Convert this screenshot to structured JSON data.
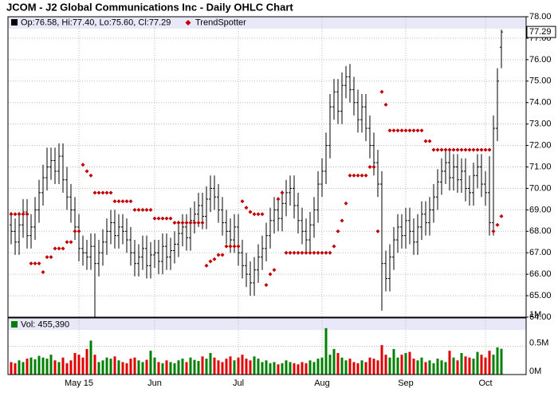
{
  "chart_data": {
    "type": "ohlc",
    "title": "JCOM - J2 Global Communications Inc - Daily OHLC Chart",
    "legend_text": "Op:76.58, Hi:77.40, Lo:75.60, Cl:77.29",
    "color": "#000000",
    "grid": true,
    "categories": [
      null,
      null,
      null,
      null,
      null,
      null,
      null,
      null,
      null,
      null,
      null,
      null,
      null,
      null,
      null,
      null,
      null,
      "May 15",
      null,
      null,
      null,
      null,
      null,
      null,
      null,
      null,
      null,
      null,
      null,
      null,
      null,
      null,
      null,
      null,
      null,
      null,
      "Jun",
      null,
      null,
      null,
      null,
      null,
      null,
      null,
      null,
      null,
      null,
      null,
      null,
      null,
      null,
      null,
      null,
      null,
      null,
      null,
      null,
      "Jul",
      null,
      null,
      null,
      null,
      null,
      null,
      null,
      null,
      null,
      null,
      null,
      null,
      null,
      null,
      null,
      null,
      null,
      null,
      null,
      null,
      "Aug",
      null,
      null,
      null,
      null,
      null,
      null,
      null,
      null,
      null,
      null,
      null,
      null,
      null,
      null,
      null,
      null,
      null,
      null,
      null,
      null,
      "Sep",
      null,
      null,
      null,
      null,
      null,
      null,
      null,
      null,
      null,
      null,
      null,
      null,
      null,
      null,
      null,
      null,
      null,
      null,
      null,
      "Oct",
      null,
      null,
      null,
      null
    ],
    "open": [
      68.3,
      68.0,
      67.5,
      68.3,
      68.9,
      67.8,
      68.2,
      69.0,
      69.8,
      70.5,
      71.0,
      71.3,
      70.8,
      71.5,
      70.4,
      69.6,
      69.0,
      68.2,
      67.2,
      67.0,
      66.8,
      67.3,
      66.5,
      67.0,
      67.5,
      68.0,
      68.4,
      67.8,
      68.2,
      68.0,
      67.6,
      67.0,
      66.5,
      66.8,
      67.2,
      66.4,
      66.9,
      67.0,
      66.6,
      67.3,
      66.8,
      67.1,
      67.4,
      67.9,
      68.2,
      67.7,
      68.5,
      68.8,
      69.2,
      68.7,
      69.5,
      70.0,
      69.6,
      69.0,
      68.4,
      68.0,
      67.6,
      68.2,
      67.0,
      66.4,
      66.0,
      65.6,
      66.2,
      66.8,
      67.2,
      67.8,
      68.5,
      69.0,
      68.6,
      69.3,
      69.8,
      70.0,
      69.2,
      68.5,
      68.0,
      67.6,
      68.3,
      69.0,
      70.2,
      70.8,
      72.0,
      73.8,
      74.5,
      73.6,
      74.8,
      75.2,
      74.6,
      74.0,
      73.2,
      73.8,
      72.8,
      72.0,
      71.2,
      70.2,
      66.5,
      65.8,
      66.8,
      67.6,
      68.2,
      67.8,
      68.5,
      68.0,
      67.5,
      68.2,
      68.8,
      68.4,
      69.0,
      69.6,
      70.3,
      70.8,
      71.2,
      70.5,
      71.0,
      70.4,
      70.8,
      70.0,
      69.8,
      70.6,
      71.0,
      70.2,
      69.8,
      68.4,
      72.8,
      76.58
    ],
    "high": [
      68.9,
      68.6,
      68.9,
      69.5,
      69.5,
      68.8,
      69.6,
      70.4,
      71.1,
      71.9,
      71.9,
      71.9,
      72.1,
      72.1,
      71.0,
      70.2,
      69.6,
      68.8,
      67.8,
      67.6,
      67.9,
      67.9,
      67.6,
      68.1,
      68.6,
      69.0,
      69.0,
      68.8,
      68.8,
      68.6,
      68.2,
      67.6,
      67.4,
      67.8,
      67.8,
      67.5,
      67.6,
      67.6,
      67.9,
      67.9,
      67.7,
      68.0,
      68.5,
      68.8,
      68.8,
      69.1,
      69.4,
      69.8,
      69.8,
      70.1,
      70.6,
      70.6,
      70.2,
      69.6,
      69.0,
      68.6,
      68.8,
      68.8,
      67.6,
      67.0,
      66.6,
      66.8,
      67.4,
      67.8,
      68.4,
      69.1,
      69.6,
      69.6,
      69.9,
      70.4,
      70.6,
      70.6,
      69.8,
      69.1,
      68.6,
      68.9,
      69.6,
      70.8,
      71.4,
      72.6,
      74.4,
      75.1,
      75.1,
      75.4,
      75.7,
      75.8,
      75.2,
      74.6,
      74.4,
      74.4,
      73.4,
      72.6,
      71.8,
      70.8,
      67.1,
      67.4,
      68.2,
      68.8,
      68.8,
      69.1,
      69.1,
      68.6,
      68.8,
      69.4,
      69.4,
      69.6,
      70.2,
      70.9,
      71.4,
      71.8,
      71.8,
      71.6,
      71.6,
      71.4,
      71.4,
      70.6,
      71.2,
      71.6,
      71.6,
      70.8,
      71.5,
      73.4,
      75.6,
      77.4
    ],
    "low": [
      67.4,
      66.9,
      66.9,
      67.7,
      67.2,
      67.2,
      67.6,
      68.4,
      69.2,
      69.9,
      70.4,
      70.2,
      70.2,
      69.8,
      69.0,
      68.4,
      67.6,
      66.6,
      66.4,
      66.2,
      66.2,
      64.0,
      65.9,
      66.4,
      66.9,
      67.4,
      67.2,
      67.2,
      67.4,
      67.0,
      66.4,
      65.9,
      65.9,
      66.2,
      65.8,
      65.8,
      66.3,
      66.0,
      66.0,
      66.2,
      66.2,
      66.5,
      66.8,
      67.3,
      67.1,
      67.1,
      67.9,
      68.2,
      68.1,
      68.1,
      68.9,
      69.0,
      68.4,
      67.8,
      67.4,
      67.0,
      67.0,
      66.4,
      65.8,
      65.4,
      65.0,
      65.0,
      65.6,
      66.2,
      66.6,
      67.2,
      67.9,
      68.0,
      68.0,
      68.7,
      69.2,
      68.6,
      67.9,
      67.4,
      67.0,
      67.0,
      67.7,
      68.4,
      69.6,
      70.2,
      71.4,
      73.2,
      73.0,
      73.0,
      74.2,
      74.0,
      73.4,
      72.6,
      72.6,
      72.2,
      71.4,
      70.6,
      69.6,
      64.3,
      65.2,
      65.2,
      66.2,
      67.0,
      67.2,
      67.2,
      67.4,
      66.9,
      66.9,
      67.6,
      67.8,
      67.8,
      68.4,
      69.0,
      69.7,
      70.2,
      69.9,
      69.9,
      69.8,
      69.8,
      69.4,
      69.2,
      69.2,
      70.0,
      69.6,
      69.2,
      67.8,
      67.8,
      72.2,
      75.6
    ],
    "close": [
      68.0,
      67.5,
      68.3,
      68.9,
      67.8,
      68.2,
      69.0,
      69.8,
      70.5,
      71.0,
      71.3,
      70.8,
      71.5,
      70.4,
      69.6,
      69.0,
      68.2,
      67.2,
      67.0,
      66.8,
      67.3,
      66.5,
      67.0,
      67.5,
      68.0,
      68.4,
      67.8,
      68.2,
      68.0,
      67.6,
      67.0,
      66.5,
      66.8,
      67.2,
      66.4,
      66.9,
      67.0,
      66.6,
      67.3,
      66.8,
      67.1,
      67.4,
      67.9,
      68.2,
      67.7,
      68.5,
      68.8,
      69.2,
      68.7,
      69.5,
      70.0,
      69.6,
      69.0,
      68.4,
      68.0,
      67.6,
      68.2,
      67.0,
      66.4,
      66.0,
      65.6,
      66.2,
      66.8,
      67.2,
      67.8,
      68.5,
      69.0,
      68.6,
      69.3,
      69.8,
      70.0,
      69.2,
      68.5,
      68.0,
      67.6,
      68.3,
      69.0,
      70.2,
      70.8,
      72.0,
      73.8,
      74.5,
      73.6,
      74.8,
      75.2,
      74.6,
      74.0,
      73.2,
      73.8,
      72.8,
      72.0,
      71.2,
      70.2,
      66.5,
      65.8,
      66.8,
      67.6,
      68.2,
      67.8,
      68.5,
      68.0,
      67.5,
      68.2,
      68.8,
      68.4,
      69.0,
      69.6,
      70.3,
      70.8,
      71.2,
      70.5,
      71.0,
      70.4,
      70.8,
      70.0,
      69.8,
      70.6,
      71.0,
      70.2,
      69.8,
      68.4,
      72.8,
      75.0,
      77.29
    ],
    "trendspotter": {
      "name": "TrendSpotter",
      "color": "#c00000",
      "values": [
        68.8,
        68.8,
        68.8,
        68.8,
        68.8,
        66.5,
        66.5,
        66.5,
        66.1,
        66.8,
        66.8,
        67.2,
        67.2,
        67.2,
        67.5,
        67.5,
        68.0,
        68.0,
        71.1,
        70.8,
        70.6,
        69.8,
        69.8,
        69.8,
        69.8,
        69.8,
        69.4,
        69.4,
        69.4,
        69.4,
        69.4,
        69.0,
        69.0,
        69.0,
        69.0,
        69.0,
        68.6,
        68.6,
        68.6,
        68.6,
        68.6,
        68.4,
        68.4,
        68.4,
        68.4,
        68.4,
        68.4,
        68.4,
        68.4,
        66.4,
        66.6,
        66.7,
        66.9,
        66.9,
        67.3,
        67.3,
        67.3,
        67.3,
        69.4,
        69.1,
        68.9,
        68.8,
        68.8,
        68.8,
        65.5,
        66.0,
        66.2,
        69.5,
        69.8,
        67.0,
        67.0,
        67.0,
        67.0,
        67.0,
        67.0,
        67.0,
        67.0,
        67.0,
        67.0,
        67.0,
        67.0,
        67.3,
        68.0,
        68.5,
        69.3,
        70.6,
        70.6,
        70.6,
        70.6,
        70.6,
        71.0,
        71.0,
        68.0,
        74.5,
        73.9,
        72.7,
        72.7,
        72.7,
        72.7,
        72.7,
        72.7,
        72.7,
        72.7,
        72.7,
        72.2,
        72.2,
        71.8,
        71.8,
        71.8,
        71.8,
        71.8,
        71.8,
        71.8,
        71.8,
        71.8,
        71.8,
        71.8,
        71.8,
        71.8,
        71.8,
        71.8,
        68.0,
        68.3,
        68.7
      ]
    },
    "ylim": [
      64,
      78
    ],
    "yticks": [
      {
        "value": 64,
        "label": "64.00"
      },
      {
        "value": 65,
        "label": "65.00"
      },
      {
        "value": 66,
        "label": "66.00"
      },
      {
        "value": 67,
        "label": "67.00"
      },
      {
        "value": 68,
        "label": "68.00"
      },
      {
        "value": 69,
        "label": "69.00"
      },
      {
        "value": 70,
        "label": "70.00"
      },
      {
        "value": 71,
        "label": "71.00"
      },
      {
        "value": 72,
        "label": "72.00"
      },
      {
        "value": 73,
        "label": "73.00"
      },
      {
        "value": 74,
        "label": "74.00"
      },
      {
        "value": 75,
        "label": "75.00"
      },
      {
        "value": 76,
        "label": "76.00"
      },
      {
        "value": 77,
        "label": "77.00"
      },
      {
        "value": 78,
        "label": "78.00"
      }
    ],
    "volume": {
      "legend_text": "Vol: 455,390",
      "up_color": "#008000",
      "down_color": "#e00000",
      "values": [
        0.22,
        0.2,
        0.25,
        0.22,
        0.28,
        0.3,
        0.27,
        0.33,
        0.3,
        0.28,
        0.35,
        0.25,
        0.22,
        0.3,
        0.2,
        0.25,
        0.38,
        0.35,
        0.3,
        0.45,
        0.6,
        0.35,
        0.22,
        0.25,
        0.3,
        0.28,
        0.32,
        0.25,
        0.22,
        0.2,
        0.28,
        0.3,
        0.25,
        0.22,
        0.26,
        0.42,
        0.3,
        0.22,
        0.2,
        0.25,
        0.22,
        0.2,
        0.25,
        0.28,
        0.22,
        0.3,
        0.26,
        0.24,
        0.32,
        0.28,
        0.38,
        0.3,
        0.25,
        0.22,
        0.28,
        0.32,
        0.25,
        0.3,
        0.35,
        0.28,
        0.25,
        0.32,
        0.28,
        0.22,
        0.25,
        0.2,
        0.22,
        0.18,
        0.2,
        0.25,
        0.22,
        0.2,
        0.18,
        0.22,
        0.2,
        0.25,
        0.22,
        0.28,
        0.3,
        0.82,
        0.35,
        0.45,
        0.38,
        0.3,
        0.25,
        0.28,
        0.22,
        0.2,
        0.25,
        0.22,
        0.3,
        0.28,
        0.25,
        0.52,
        0.35,
        0.3,
        0.45,
        0.3,
        0.35,
        0.38,
        0.4,
        0.28,
        0.25,
        0.3,
        0.22,
        0.25,
        0.2,
        0.28,
        0.25,
        0.22,
        0.42,
        0.3,
        0.25,
        0.38,
        0.32,
        0.3,
        0.28,
        0.4,
        0.35,
        0.3,
        0.42,
        0.35,
        0.48,
        0.455
      ],
      "ylim": [
        0,
        1
      ],
      "yticks": [
        {
          "value": 0,
          "label": "0M"
        },
        {
          "value": 0.5,
          "label": "0.5M"
        },
        {
          "value": 1,
          "label": "1M"
        }
      ]
    }
  }
}
